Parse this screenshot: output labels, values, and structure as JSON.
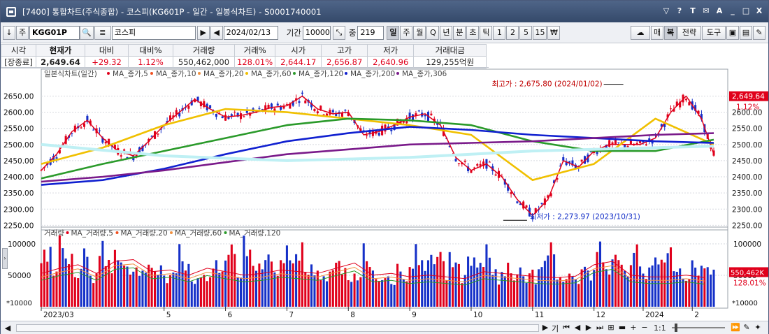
{
  "window": {
    "title": "[7400] 통합차트(주식종합) - 코스피(KG601P - 일간 - 일봉식차트) - S0001740001",
    "buttons": [
      "▽",
      "?",
      "T",
      "✉",
      "A",
      "_",
      "□",
      "X"
    ]
  },
  "toolbar": {
    "down_arrow": "↓",
    "type_btn": "주",
    "code": "KGG01P",
    "search_icon_label": "🔍",
    "name": "코스피",
    "prev": "▶",
    "next": "◀",
    "date": "2024/02/13",
    "period_label": "기간",
    "period_value": "10000",
    "view_label": "중",
    "view_value": "219",
    "periods": [
      "일",
      "주",
      "월",
      "Q",
      "년",
      "분",
      "초",
      "틱",
      "1",
      "2",
      "5",
      "15",
      "₩"
    ],
    "right_buttons": [
      "매",
      "복",
      "전략",
      "도구"
    ]
  },
  "quote": {
    "headers": [
      "시각",
      "현재가",
      "대비",
      "대비%",
      "거래량",
      "거래%",
      "시가",
      "고가",
      "저가",
      "거래대금"
    ],
    "values": [
      "[장종료]",
      "2,649.64",
      "+29.32",
      "1.12%",
      "550,462,000",
      "128.01%",
      "2,644.17",
      "2,656.87",
      "2,640.96",
      "129,255억원"
    ]
  },
  "chart_data": [
    {
      "type": "line",
      "title": "일본식차트(일간)",
      "legend": [
        "MA_종가,5",
        "MA_종가,10",
        "MA_종가,20",
        "MA_종가,60",
        "MA_종가,120",
        "MA_종가,200",
        "MA_종가,306"
      ],
      "legend_colors": [
        "#e0001b",
        "#f05020",
        "#f09040",
        "#f0c000",
        "#2a9a2a",
        "#1020d0",
        "#7a1a8a"
      ],
      "y_ticks": [
        2650,
        2600,
        2550,
        2500,
        2450,
        2400,
        2350,
        2300,
        2250
      ],
      "ylim": [
        2240,
        2690
      ],
      "annotations": {
        "high": "최고가 : 2,675.80 (2024/01/02)",
        "low": "최저가 : 2,273.97 (2023/10/31)",
        "last_price": "2,649.64",
        "last_change": "1.12%"
      },
      "series": [
        {
          "name": "MA_종가,5",
          "color": "#e0001b",
          "x": [
            0,
            5,
            10,
            15,
            20,
            25,
            30,
            35,
            40,
            45,
            50,
            55,
            60,
            65,
            70,
            75,
            80,
            85,
            90,
            95,
            100,
            105,
            110,
            115,
            120,
            125,
            130,
            135,
            140,
            145,
            150,
            155,
            160,
            165,
            170,
            175,
            180,
            185,
            190,
            195,
            200,
            205,
            210,
            215,
            219
          ],
          "values": [
            2420,
            2470,
            2540,
            2575,
            2520,
            2480,
            2465,
            2510,
            2560,
            2600,
            2640,
            2610,
            2585,
            2590,
            2600,
            2615,
            2620,
            2650,
            2610,
            2595,
            2600,
            2530,
            2540,
            2560,
            2585,
            2595,
            2560,
            2460,
            2420,
            2440,
            2400,
            2330,
            2280,
            2330,
            2450,
            2430,
            2480,
            2500,
            2500,
            2500,
            2520,
            2600,
            2650,
            2580,
            2470
          ]
        },
        {
          "name": "MA_종가,60",
          "color": "#f0c000",
          "x": [
            0,
            20,
            40,
            60,
            80,
            100,
            120,
            140,
            160,
            180,
            200,
            219
          ],
          "values": [
            2440,
            2490,
            2560,
            2610,
            2600,
            2580,
            2560,
            2530,
            2390,
            2440,
            2580,
            2500
          ]
        },
        {
          "name": "MA_종가,120",
          "color": "#2a9a2a",
          "x": [
            0,
            20,
            40,
            60,
            80,
            100,
            120,
            140,
            160,
            180,
            200,
            219
          ],
          "values": [
            2395,
            2440,
            2480,
            2520,
            2560,
            2580,
            2575,
            2560,
            2510,
            2480,
            2480,
            2515
          ]
        },
        {
          "name": "MA_종가,200",
          "color": "#1020d0",
          "x": [
            0,
            20,
            40,
            60,
            80,
            100,
            120,
            140,
            160,
            180,
            200,
            219
          ],
          "values": [
            2375,
            2390,
            2425,
            2470,
            2510,
            2535,
            2555,
            2545,
            2530,
            2520,
            2510,
            2505
          ]
        },
        {
          "name": "MA_종가,306",
          "color": "#7a1a8a",
          "x": [
            0,
            20,
            40,
            60,
            80,
            100,
            120,
            140,
            160,
            180,
            200,
            219
          ],
          "values": [
            2385,
            2400,
            2420,
            2445,
            2470,
            2485,
            2500,
            2505,
            2510,
            2520,
            2530,
            2535
          ]
        }
      ],
      "volume_legend": [
        "거래량",
        "MA_거래량,5",
        "MA_거래량,20",
        "MA_거래량,60",
        "MA_거래량,120"
      ],
      "volume_ticks": [
        100000,
        50000
      ],
      "volume_unit": "*10000",
      "volume_last": "550,462K",
      "volume_last_pct": "128.01%",
      "volume_values": [
        60,
        75,
        90,
        85,
        60,
        55,
        95,
        100,
        80,
        65,
        70,
        60,
        55,
        75,
        80,
        65,
        55,
        50,
        60,
        70,
        85,
        65,
        60,
        70,
        75,
        90,
        70,
        55,
        60,
        45,
        50,
        55,
        60,
        50,
        45,
        55,
        65,
        60,
        50,
        55,
        50,
        45,
        48,
        52,
        60,
        85,
        95,
        70,
        55,
        50,
        45,
        50,
        55,
        50,
        48,
        45,
        55,
        60,
        50,
        45
      ],
      "x_ticks": [
        "2023/03",
        "5",
        "6",
        "7",
        "8",
        "9",
        "10",
        "11",
        "12",
        "2024",
        "2"
      ]
    }
  ],
  "scroll": {
    "buttons": [
      "◀",
      "▶"
    ],
    "zoom_label": "1:1",
    "right_tools": [
      "기",
      "⏮",
      "◀",
      "▶",
      "⏭",
      "⊞",
      "▬",
      "+",
      "−"
    ]
  }
}
